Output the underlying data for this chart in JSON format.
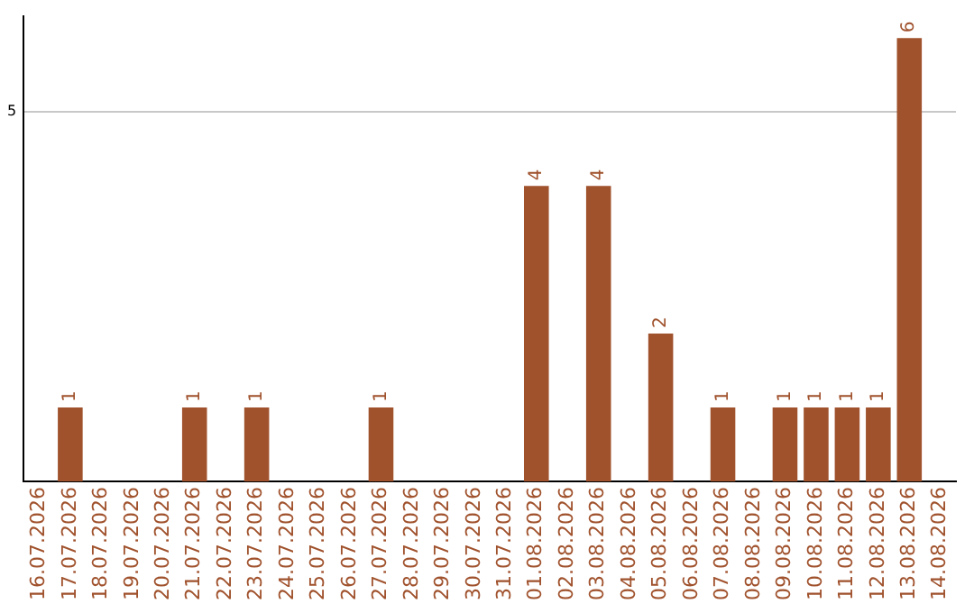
{
  "chart_data": {
    "type": "bar",
    "categories": [
      "16.07.2026",
      "17.07.2026",
      "18.07.2026",
      "19.07.2026",
      "20.07.2026",
      "21.07.2026",
      "22.07.2026",
      "23.07.2026",
      "24.07.2026",
      "25.07.2026",
      "26.07.2026",
      "27.07.2026",
      "28.07.2026",
      "29.07.2026",
      "30.07.2026",
      "31.07.2026",
      "01.08.2026",
      "02.08.2026",
      "03.08.2026",
      "04.08.2026",
      "05.08.2026",
      "06.08.2026",
      "07.08.2026",
      "08.08.2026",
      "09.08.2026",
      "10.08.2026",
      "11.08.2026",
      "12.08.2026",
      "13.08.2026",
      "14.08.2026"
    ],
    "values": [
      0,
      1,
      0,
      0,
      0,
      1,
      0,
      1,
      0,
      0,
      0,
      1,
      0,
      0,
      0,
      0,
      4,
      0,
      4,
      0,
      2,
      0,
      1,
      0,
      1,
      1,
      1,
      1,
      6,
      0
    ],
    "value_labels": [
      null,
      "1",
      null,
      null,
      null,
      "1",
      null,
      "1",
      null,
      null,
      null,
      "1",
      null,
      null,
      null,
      null,
      "4",
      null,
      "4",
      null,
      "2",
      null,
      "1",
      null,
      "1",
      "1",
      "1",
      "1",
      "6",
      null
    ],
    "color": "#a0522d",
    "ylim": [
      0,
      6.3
    ],
    "yticks": [
      5
    ],
    "grid": "y",
    "legend": false
  }
}
